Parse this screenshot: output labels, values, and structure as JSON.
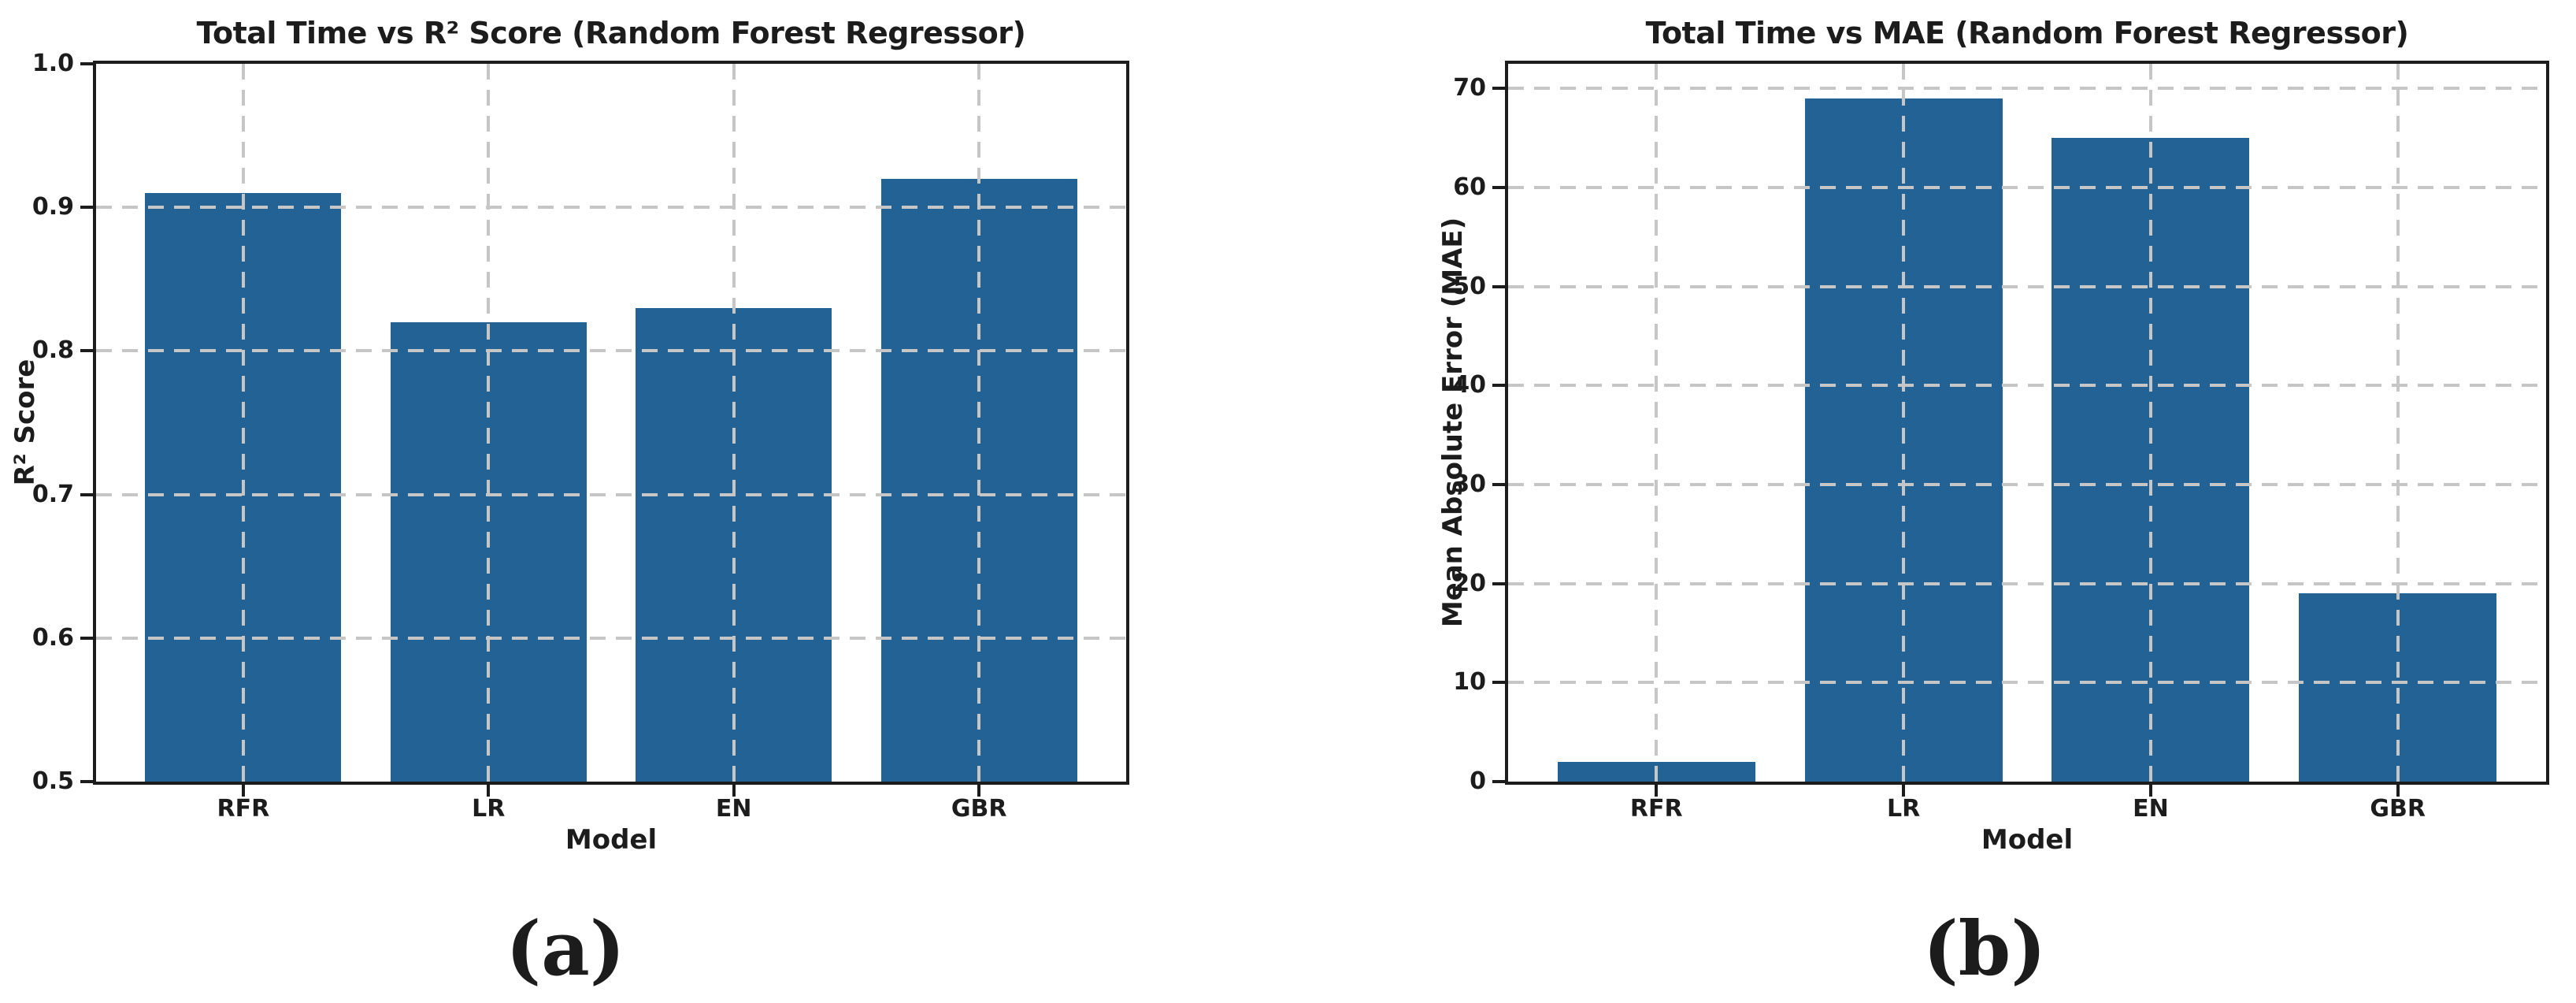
{
  "colors": {
    "bar_fill": "#226294",
    "grid_line": "#c6c6c6",
    "spine": "#1c1c1c",
    "text": "#1c1c1c",
    "background": "#ffffff"
  },
  "captions": [
    {
      "label": "(a)"
    },
    {
      "label": "(b)"
    }
  ],
  "chart_data": [
    {
      "type": "bar",
      "title": "Total Time vs R² Score (Random Forest Regressor)",
      "xlabel": "Model",
      "ylabel": "R² Score",
      "categories": [
        "RFR",
        "LR",
        "EN",
        "GBR"
      ],
      "values": [
        0.91,
        0.82,
        0.83,
        0.92
      ],
      "ylim": [
        0.5,
        1.0
      ],
      "yticks": [
        1.0,
        0.9,
        0.8,
        0.7,
        0.6,
        0.5
      ],
      "ytick_labels": [
        "1.0",
        "0.9",
        "0.8",
        "0.7",
        "0.6",
        "0.5"
      ],
      "bar_width_fraction": 0.8,
      "grid": "dashed, horizontal and vertical, drawn above bars",
      "legend_position": "none",
      "caption": "(a)"
    },
    {
      "type": "bar",
      "title": "Total Time vs MAE (Random Forest Regressor)",
      "xlabel": "Model",
      "ylabel": "Mean Absolute Error (MAE)",
      "categories": [
        "RFR",
        "LR",
        "EN",
        "GBR"
      ],
      "values": [
        2,
        69,
        65,
        19
      ],
      "ylim": [
        0,
        72.5
      ],
      "yticks": [
        70,
        60,
        50,
        40,
        30,
        20,
        10,
        0
      ],
      "ytick_labels": [
        "70",
        "60",
        "50",
        "40",
        "30",
        "20",
        "10",
        "0"
      ],
      "bar_width_fraction": 0.8,
      "grid": "dashed, horizontal and vertical, drawn above bars",
      "legend_position": "none",
      "caption": "(b)"
    }
  ]
}
